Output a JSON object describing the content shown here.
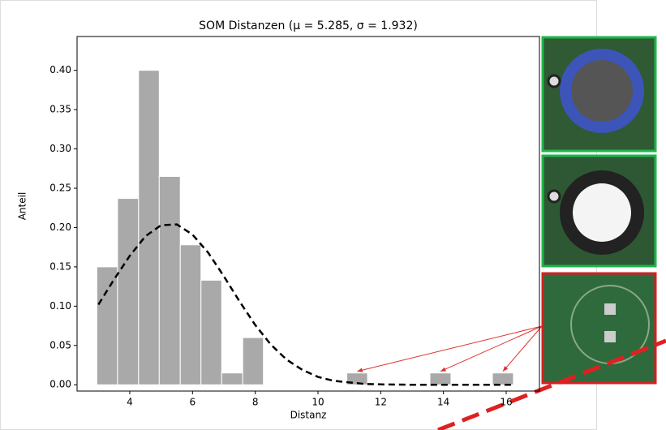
{
  "chart_data": {
    "type": "histogram",
    "title": "SOM Distanzen (μ = 5.285,  σ = 1.932)",
    "xlabel": "Distanz",
    "ylabel": "Anteil",
    "bins": [
      2.95,
      3.61,
      4.28,
      4.94,
      5.61,
      6.27,
      6.93,
      7.6,
      8.26,
      8.93,
      9.59,
      10.25,
      10.92,
      11.58,
      12.25,
      12.91,
      13.57,
      14.24,
      14.9,
      15.56,
      16.23
    ],
    "counts": [
      0.15,
      0.237,
      0.4,
      0.265,
      0.178,
      0.133,
      0.015,
      0.06,
      0,
      0,
      0,
      0,
      0.015,
      0,
      0,
      0,
      0.015,
      0,
      0,
      0.015
    ],
    "color": "#a9a9a9",
    "curve": {
      "color": "#000000",
      "x": [
        3,
        3.5,
        4,
        4.5,
        5,
        5.5,
        6,
        6.5,
        7,
        7.5,
        8,
        8.5,
        9,
        9.5,
        10,
        10.5,
        11,
        11.5,
        12,
        13,
        14,
        15,
        16.2
      ],
      "y": [
        0.102,
        0.134,
        0.164,
        0.189,
        0.203,
        0.204,
        0.191,
        0.168,
        0.138,
        0.106,
        0.076,
        0.051,
        0.032,
        0.019,
        0.01,
        0.005,
        0.003,
        0.001,
        0.0005,
        0,
        0,
        0,
        0
      ]
    },
    "xlim": [
      2.32,
      17.06
    ],
    "ylim": [
      -0.008,
      0.443
    ],
    "xticks": [
      4,
      6,
      8,
      10,
      12,
      14,
      16
    ],
    "yticks": [
      {
        "value": 0,
        "label": "0.00"
      },
      {
        "value": 0.05,
        "label": "0.05"
      },
      {
        "value": 0.1,
        "label": "0.10"
      },
      {
        "value": 0.15,
        "label": "0.15"
      },
      {
        "value": 0.2,
        "label": "0.20"
      },
      {
        "value": 0.25,
        "label": "0.25"
      },
      {
        "value": 0.3,
        "label": "0.30"
      },
      {
        "value": 0.35,
        "label": "0.35"
      },
      {
        "value": 0.4,
        "label": "0.40"
      }
    ]
  }
}
